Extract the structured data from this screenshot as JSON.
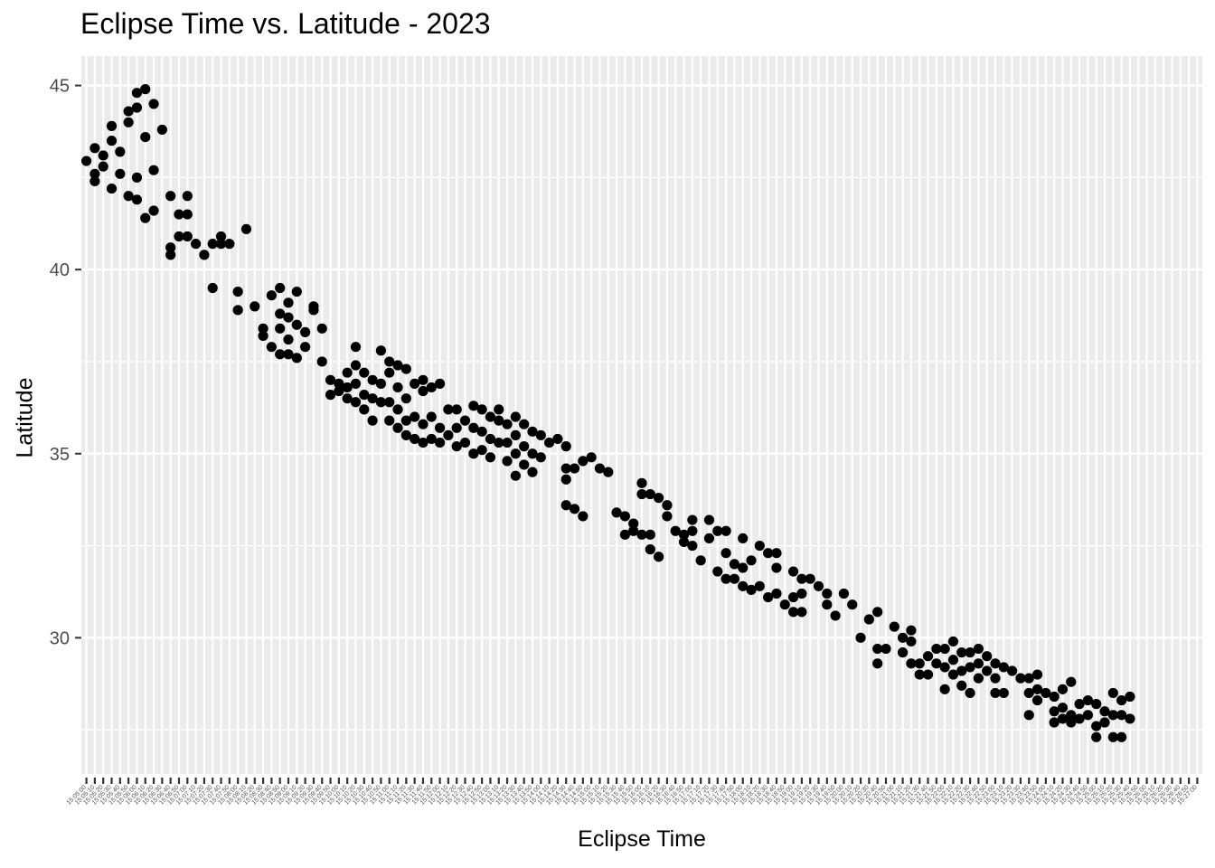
{
  "chart_data": {
    "type": "scatter",
    "title": "Eclipse Time vs. Latitude - 2023",
    "xlabel": "Eclipse Time",
    "ylabel": "Latitude",
    "x_axis": {
      "kind": "categorical-time",
      "start": "15:05:00",
      "end": "15:27:00",
      "step_seconds": 10
    },
    "ylim": [
      26.3,
      45.8
    ],
    "y_ticks": [
      30,
      35,
      40,
      45
    ],
    "grid": true,
    "legend": "none",
    "colors": {
      "panel": "#ebebeb",
      "grid": "#ffffff",
      "point": "#000000"
    },
    "points": [
      [
        "15:05:00",
        42.95
      ],
      [
        "15:05:10",
        43.3
      ],
      [
        "15:05:10",
        42.6
      ],
      [
        "15:05:10",
        42.4
      ],
      [
        "15:05:20",
        43.1
      ],
      [
        "15:05:20",
        42.8
      ],
      [
        "15:05:30",
        43.9
      ],
      [
        "15:05:30",
        43.5
      ],
      [
        "15:05:30",
        42.2
      ],
      [
        "15:05:40",
        43.2
      ],
      [
        "15:05:40",
        42.6
      ],
      [
        "15:05:50",
        44.3
      ],
      [
        "15:05:50",
        44.0
      ],
      [
        "15:05:50",
        42.0
      ],
      [
        "15:06:00",
        44.8
      ],
      [
        "15:06:00",
        44.4
      ],
      [
        "15:06:00",
        42.5
      ],
      [
        "15:06:00",
        41.9
      ],
      [
        "15:06:10",
        44.9
      ],
      [
        "15:06:10",
        43.6
      ],
      [
        "15:06:10",
        41.4
      ],
      [
        "15:06:20",
        44.5
      ],
      [
        "15:06:20",
        42.7
      ],
      [
        "15:06:20",
        41.6
      ],
      [
        "15:06:30",
        43.8
      ],
      [
        "15:06:40",
        42.0
      ],
      [
        "15:06:40",
        40.6
      ],
      [
        "15:06:40",
        40.4
      ],
      [
        "15:06:50",
        41.5
      ],
      [
        "15:06:50",
        40.9
      ],
      [
        "15:07:00",
        42.0
      ],
      [
        "15:07:00",
        41.5
      ],
      [
        "15:07:00",
        40.9
      ],
      [
        "15:07:10",
        40.7
      ],
      [
        "15:07:20",
        40.4
      ],
      [
        "15:07:30",
        40.7
      ],
      [
        "15:07:30",
        39.5
      ],
      [
        "15:07:40",
        40.9
      ],
      [
        "15:07:40",
        40.7
      ],
      [
        "15:07:50",
        40.7
      ],
      [
        "15:08:00",
        39.4
      ],
      [
        "15:08:00",
        38.9
      ],
      [
        "15:08:10",
        41.1
      ],
      [
        "15:08:20",
        39.0
      ],
      [
        "15:08:30",
        38.4
      ],
      [
        "15:08:30",
        38.2
      ],
      [
        "15:08:40",
        39.3
      ],
      [
        "15:08:40",
        37.9
      ],
      [
        "15:08:50",
        39.5
      ],
      [
        "15:08:50",
        38.8
      ],
      [
        "15:08:50",
        38.4
      ],
      [
        "15:08:50",
        37.7
      ],
      [
        "15:09:00",
        39.1
      ],
      [
        "15:09:00",
        38.7
      ],
      [
        "15:09:00",
        38.1
      ],
      [
        "15:09:00",
        37.7
      ],
      [
        "15:09:10",
        39.4
      ],
      [
        "15:09:10",
        38.5
      ],
      [
        "15:09:10",
        37.6
      ],
      [
        "15:09:20",
        38.3
      ],
      [
        "15:09:20",
        37.9
      ],
      [
        "15:09:30",
        39.0
      ],
      [
        "15:09:30",
        38.9
      ],
      [
        "15:09:40",
        38.4
      ],
      [
        "15:09:40",
        37.5
      ],
      [
        "15:09:50",
        37.0
      ],
      [
        "15:09:50",
        36.6
      ],
      [
        "15:10:00",
        36.9
      ],
      [
        "15:10:00",
        36.7
      ],
      [
        "15:10:10",
        37.2
      ],
      [
        "15:10:10",
        36.8
      ],
      [
        "15:10:10",
        36.5
      ],
      [
        "15:10:20",
        37.9
      ],
      [
        "15:10:20",
        37.4
      ],
      [
        "15:10:20",
        36.9
      ],
      [
        "15:10:20",
        36.4
      ],
      [
        "15:10:30",
        37.2
      ],
      [
        "15:10:30",
        36.6
      ],
      [
        "15:10:30",
        36.2
      ],
      [
        "15:10:40",
        37.0
      ],
      [
        "15:10:40",
        36.5
      ],
      [
        "15:10:40",
        35.9
      ],
      [
        "15:10:50",
        37.8
      ],
      [
        "15:10:50",
        36.9
      ],
      [
        "15:10:50",
        36.4
      ],
      [
        "15:11:00",
        37.5
      ],
      [
        "15:11:00",
        37.2
      ],
      [
        "15:11:00",
        36.4
      ],
      [
        "15:11:00",
        35.9
      ],
      [
        "15:11:10",
        37.4
      ],
      [
        "15:11:10",
        36.8
      ],
      [
        "15:11:10",
        36.2
      ],
      [
        "15:11:10",
        35.7
      ],
      [
        "15:11:20",
        37.3
      ],
      [
        "15:11:20",
        36.5
      ],
      [
        "15:11:20",
        35.9
      ],
      [
        "15:11:20",
        35.5
      ],
      [
        "15:11:30",
        36.9
      ],
      [
        "15:11:30",
        36.0
      ],
      [
        "15:11:30",
        35.4
      ],
      [
        "15:11:40",
        37.0
      ],
      [
        "15:11:40",
        36.7
      ],
      [
        "15:11:40",
        35.8
      ],
      [
        "15:11:40",
        35.3
      ],
      [
        "15:11:50",
        36.8
      ],
      [
        "15:11:50",
        36.0
      ],
      [
        "15:11:50",
        35.4
      ],
      [
        "15:12:00",
        36.9
      ],
      [
        "15:12:00",
        35.7
      ],
      [
        "15:12:00",
        35.3
      ],
      [
        "15:12:10",
        36.2
      ],
      [
        "15:12:10",
        35.5
      ],
      [
        "15:12:20",
        36.2
      ],
      [
        "15:12:20",
        35.7
      ],
      [
        "15:12:20",
        35.2
      ],
      [
        "15:12:30",
        35.9
      ],
      [
        "15:12:30",
        35.3
      ],
      [
        "15:12:40",
        36.3
      ],
      [
        "15:12:40",
        35.7
      ],
      [
        "15:12:40",
        35.0
      ],
      [
        "15:12:50",
        36.2
      ],
      [
        "15:12:50",
        35.6
      ],
      [
        "15:12:50",
        35.1
      ],
      [
        "15:13:00",
        36.0
      ],
      [
        "15:13:00",
        35.4
      ],
      [
        "15:13:00",
        34.9
      ],
      [
        "15:13:10",
        36.2
      ],
      [
        "15:13:10",
        35.9
      ],
      [
        "15:13:10",
        35.3
      ],
      [
        "15:13:20",
        35.8
      ],
      [
        "15:13:20",
        35.3
      ],
      [
        "15:13:20",
        34.8
      ],
      [
        "15:13:30",
        36.0
      ],
      [
        "15:13:30",
        35.5
      ],
      [
        "15:13:30",
        35.0
      ],
      [
        "15:13:30",
        34.4
      ],
      [
        "15:13:40",
        35.8
      ],
      [
        "15:13:40",
        35.2
      ],
      [
        "15:13:40",
        34.7
      ],
      [
        "15:13:50",
        35.6
      ],
      [
        "15:13:50",
        35.0
      ],
      [
        "15:13:50",
        34.5
      ],
      [
        "15:14:00",
        35.5
      ],
      [
        "15:14:00",
        34.9
      ],
      [
        "15:14:10",
        35.3
      ],
      [
        "15:14:20",
        35.4
      ],
      [
        "15:14:30",
        35.2
      ],
      [
        "15:14:30",
        34.6
      ],
      [
        "15:14:30",
        34.3
      ],
      [
        "15:14:30",
        33.6
      ],
      [
        "15:14:40",
        34.6
      ],
      [
        "15:14:40",
        33.5
      ],
      [
        "15:14:50",
        34.8
      ],
      [
        "15:14:50",
        33.3
      ],
      [
        "15:15:00",
        34.9
      ],
      [
        "15:15:10",
        34.6
      ],
      [
        "15:15:20",
        34.5
      ],
      [
        "15:15:30",
        33.4
      ],
      [
        "15:15:40",
        33.3
      ],
      [
        "15:15:40",
        32.8
      ],
      [
        "15:15:50",
        33.1
      ],
      [
        "15:15:50",
        32.9
      ],
      [
        "15:16:00",
        34.2
      ],
      [
        "15:16:00",
        33.9
      ],
      [
        "15:16:00",
        32.8
      ],
      [
        "15:16:10",
        33.9
      ],
      [
        "15:16:10",
        32.8
      ],
      [
        "15:16:10",
        32.4
      ],
      [
        "15:16:20",
        33.8
      ],
      [
        "15:16:20",
        32.2
      ],
      [
        "15:16:30",
        33.6
      ],
      [
        "15:16:30",
        33.3
      ],
      [
        "15:16:40",
        32.9
      ],
      [
        "15:16:50",
        32.8
      ],
      [
        "15:16:50",
        32.6
      ],
      [
        "15:17:00",
        33.2
      ],
      [
        "15:17:00",
        32.9
      ],
      [
        "15:17:00",
        32.5
      ],
      [
        "15:17:10",
        32.1
      ],
      [
        "15:17:20",
        33.2
      ],
      [
        "15:17:20",
        32.7
      ],
      [
        "15:17:30",
        32.9
      ],
      [
        "15:17:30",
        31.8
      ],
      [
        "15:17:40",
        32.9
      ],
      [
        "15:17:40",
        32.3
      ],
      [
        "15:17:40",
        31.6
      ],
      [
        "15:17:50",
        32.0
      ],
      [
        "15:17:50",
        31.6
      ],
      [
        "15:18:00",
        32.7
      ],
      [
        "15:18:00",
        31.9
      ],
      [
        "15:18:00",
        31.4
      ],
      [
        "15:18:10",
        32.1
      ],
      [
        "15:18:10",
        31.3
      ],
      [
        "15:18:20",
        32.5
      ],
      [
        "15:18:20",
        31.4
      ],
      [
        "15:18:30",
        32.3
      ],
      [
        "15:18:30",
        31.1
      ],
      [
        "15:18:40",
        32.3
      ],
      [
        "15:18:40",
        31.9
      ],
      [
        "15:18:40",
        31.2
      ],
      [
        "15:18:50",
        30.9
      ],
      [
        "15:19:00",
        31.8
      ],
      [
        "15:19:00",
        31.1
      ],
      [
        "15:19:00",
        30.7
      ],
      [
        "15:19:10",
        31.6
      ],
      [
        "15:19:10",
        31.2
      ],
      [
        "15:19:10",
        30.7
      ],
      [
        "15:19:20",
        31.6
      ],
      [
        "15:19:30",
        31.4
      ],
      [
        "15:19:40",
        31.2
      ],
      [
        "15:19:40",
        30.9
      ],
      [
        "15:19:50",
        30.6
      ],
      [
        "15:20:00",
        31.2
      ],
      [
        "15:20:10",
        30.9
      ],
      [
        "15:20:20",
        30.0
      ],
      [
        "15:20:30",
        30.5
      ],
      [
        "15:20:40",
        30.7
      ],
      [
        "15:20:40",
        29.7
      ],
      [
        "15:20:40",
        29.3
      ],
      [
        "15:20:50",
        29.7
      ],
      [
        "15:21:00",
        30.3
      ],
      [
        "15:21:10",
        30.0
      ],
      [
        "15:21:10",
        29.6
      ],
      [
        "15:21:20",
        30.2
      ],
      [
        "15:21:20",
        29.9
      ],
      [
        "15:21:20",
        29.3
      ],
      [
        "15:21:30",
        29.3
      ],
      [
        "15:21:30",
        29.0
      ],
      [
        "15:21:40",
        29.5
      ],
      [
        "15:21:40",
        29.0
      ],
      [
        "15:21:50",
        29.7
      ],
      [
        "15:21:50",
        29.3
      ],
      [
        "15:22:00",
        29.7
      ],
      [
        "15:22:00",
        29.2
      ],
      [
        "15:22:00",
        28.6
      ],
      [
        "15:22:10",
        29.9
      ],
      [
        "15:22:10",
        29.4
      ],
      [
        "15:22:10",
        29.0
      ],
      [
        "15:22:20",
        29.6
      ],
      [
        "15:22:20",
        29.1
      ],
      [
        "15:22:20",
        28.7
      ],
      [
        "15:22:30",
        29.6
      ],
      [
        "15:22:30",
        29.2
      ],
      [
        "15:22:30",
        28.5
      ],
      [
        "15:22:40",
        29.7
      ],
      [
        "15:22:40",
        29.3
      ],
      [
        "15:22:40",
        28.9
      ],
      [
        "15:22:50",
        29.5
      ],
      [
        "15:22:50",
        29.1
      ],
      [
        "15:23:00",
        29.3
      ],
      [
        "15:23:00",
        28.9
      ],
      [
        "15:23:00",
        28.5
      ],
      [
        "15:23:10",
        29.2
      ],
      [
        "15:23:10",
        28.5
      ],
      [
        "15:23:20",
        29.1
      ],
      [
        "15:23:30",
        28.9
      ],
      [
        "15:23:40",
        28.9
      ],
      [
        "15:23:40",
        28.5
      ],
      [
        "15:23:40",
        27.9
      ],
      [
        "15:23:50",
        29.0
      ],
      [
        "15:23:50",
        28.6
      ],
      [
        "15:23:50",
        28.3
      ],
      [
        "15:24:00",
        28.5
      ],
      [
        "15:24:10",
        28.4
      ],
      [
        "15:24:10",
        28.0
      ],
      [
        "15:24:10",
        27.7
      ],
      [
        "15:24:20",
        28.6
      ],
      [
        "15:24:20",
        28.1
      ],
      [
        "15:24:20",
        27.8
      ],
      [
        "15:24:30",
        28.8
      ],
      [
        "15:24:30",
        27.9
      ],
      [
        "15:24:30",
        27.7
      ],
      [
        "15:24:40",
        28.2
      ],
      [
        "15:24:40",
        27.8
      ],
      [
        "15:24:50",
        28.3
      ],
      [
        "15:24:50",
        27.9
      ],
      [
        "15:25:00",
        28.2
      ],
      [
        "15:25:00",
        27.6
      ],
      [
        "15:25:00",
        27.3
      ],
      [
        "15:25:10",
        28.0
      ],
      [
        "15:25:10",
        27.7
      ],
      [
        "15:25:20",
        28.5
      ],
      [
        "15:25:20",
        27.9
      ],
      [
        "15:25:20",
        27.3
      ],
      [
        "15:25:30",
        28.3
      ],
      [
        "15:25:30",
        27.9
      ],
      [
        "15:25:30",
        27.3
      ],
      [
        "15:25:40",
        28.4
      ],
      [
        "15:25:40",
        27.8
      ]
    ]
  }
}
